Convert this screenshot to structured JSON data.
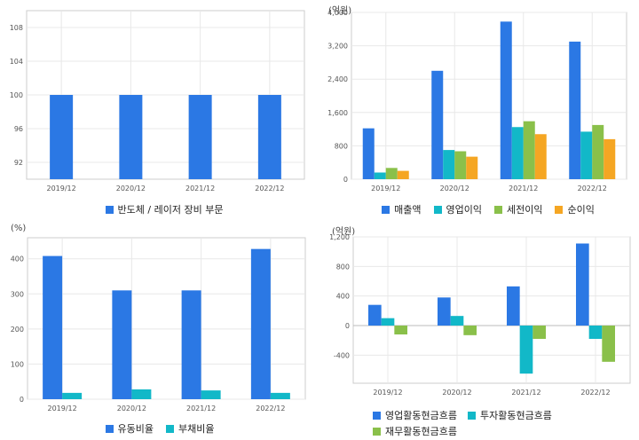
{
  "colors": {
    "blue": "#2b78e4",
    "cyan": "#12b8c8",
    "green": "#8ac04a",
    "orange": "#f5a623",
    "grid": "#e8e8e8",
    "frame": "#cccccc"
  },
  "chart_data": [
    {
      "type": "bar",
      "unit": "",
      "categories": [
        "2019/12",
        "2020/12",
        "2021/12",
        "2022/12"
      ],
      "yticks": [
        "92",
        "96",
        "100",
        "104",
        "108"
      ],
      "ylim": [
        90,
        110
      ],
      "grid": true,
      "legend_position": "bottom",
      "series": [
        {
          "name": "반도체 / 레이저 장비 부문",
          "color": "#2b78e4",
          "values": [
            100,
            100,
            100,
            100
          ]
        }
      ]
    },
    {
      "type": "bar",
      "unit": "(억원)",
      "categories": [
        "2019/12",
        "2020/12",
        "2021/12",
        "2022/12"
      ],
      "yticks": [
        "0",
        "800",
        "1,600",
        "2,400",
        "3,200",
        "4,000"
      ],
      "ylim": [
        0,
        4000
      ],
      "grid": true,
      "legend_position": "bottom",
      "series": [
        {
          "name": "매출액",
          "color": "#2b78e4",
          "values": [
            1220,
            2600,
            3780,
            3300
          ]
        },
        {
          "name": "영업이익",
          "color": "#12b8c8",
          "values": [
            160,
            700,
            1250,
            1140
          ]
        },
        {
          "name": "세전이익",
          "color": "#8ac04a",
          "values": [
            270,
            670,
            1390,
            1300
          ]
        },
        {
          "name": "순이익",
          "color": "#f5a623",
          "values": [
            200,
            540,
            1080,
            960
          ]
        }
      ]
    },
    {
      "type": "bar",
      "unit": "(%)",
      "categories": [
        "2019/12",
        "2020/12",
        "2021/12",
        "2022/12"
      ],
      "yticks": [
        "0",
        "100",
        "200",
        "300",
        "400"
      ],
      "ylim": [
        0,
        460
      ],
      "grid": true,
      "legend_position": "bottom",
      "series": [
        {
          "name": "유동비율",
          "color": "#2b78e4",
          "values": [
            408,
            310,
            310,
            428
          ]
        },
        {
          "name": "부채비율",
          "color": "#12b8c8",
          "values": [
            18,
            28,
            25,
            18
          ]
        }
      ]
    },
    {
      "type": "bar",
      "unit": "(억원)",
      "categories": [
        "2019/12",
        "2020/12",
        "2021/12",
        "2022/12"
      ],
      "yticks": [
        "-400",
        "0",
        "400",
        "800",
        "1,200"
      ],
      "ylim": [
        -780,
        1200
      ],
      "grid": true,
      "legend_position": "bottom",
      "series": [
        {
          "name": "영업활동현금흐름",
          "color": "#2b78e4",
          "values": [
            280,
            380,
            530,
            1110
          ]
        },
        {
          "name": "투자활동현금흐름",
          "color": "#12b8c8",
          "values": [
            100,
            130,
            -650,
            -180
          ]
        },
        {
          "name": "재무활동현금흐름",
          "color": "#8ac04a",
          "values": [
            -120,
            -130,
            -180,
            -490
          ]
        }
      ]
    }
  ]
}
